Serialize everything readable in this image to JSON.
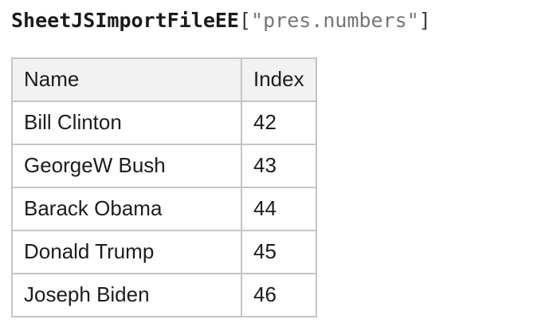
{
  "title": {
    "function_name": "SheetJSImportFileEE",
    "bracket_open": "[",
    "string_arg": "\"pres.numbers\"",
    "bracket_close": "]"
  },
  "table": {
    "columns": [
      "Name",
      "Index"
    ],
    "rows": [
      {
        "name": "Bill Clinton",
        "index": "42"
      },
      {
        "name": "GeorgeW Bush",
        "index": "43"
      },
      {
        "name": "Barack Obama",
        "index": "44"
      },
      {
        "name": "Donald Trump",
        "index": "45"
      },
      {
        "name": "Joseph Biden",
        "index": "46"
      }
    ]
  },
  "colors": {
    "text": "#1c1c1c",
    "title_text": "#1b1b1b",
    "bracket": "#3a3a3a",
    "string_gray": "#757575",
    "table_border": "#c4c4c4",
    "header_bg": "#f2f2f2",
    "page_bg": "#ffffff"
  }
}
